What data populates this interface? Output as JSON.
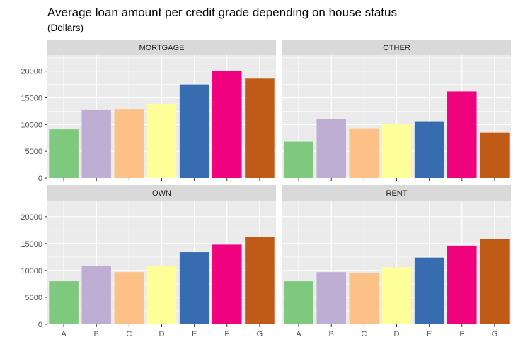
{
  "chart_data": {
    "type": "bar",
    "title": "Average loan amount per credit grade depending on house status",
    "subtitle": "(Dollars)",
    "xlabel": "",
    "ylabel": "",
    "categories": [
      "A",
      "B",
      "C",
      "D",
      "E",
      "F",
      "G"
    ],
    "colors": [
      "#7fc97f",
      "#beaed4",
      "#fdc086",
      "#ffff99",
      "#386cb0",
      "#f0027f",
      "#bf5b17"
    ],
    "ylim": [
      0,
      23000
    ],
    "yticks": [
      0,
      5000,
      10000,
      15000,
      20000
    ],
    "ytick_labels": [
      "0",
      "5000",
      "10000",
      "15000",
      "20000"
    ],
    "grid": true,
    "legend": "none",
    "panels": [
      {
        "name": "MORTGAGE",
        "values": [
          9100,
          12700,
          12800,
          13900,
          17500,
          20000,
          18600
        ]
      },
      {
        "name": "OTHER",
        "values": [
          6800,
          11000,
          9300,
          10100,
          10500,
          16200,
          8500
        ]
      },
      {
        "name": "OWN",
        "values": [
          8000,
          10800,
          9700,
          10900,
          13400,
          14800,
          16200
        ]
      },
      {
        "name": "RENT",
        "values": [
          8000,
          9700,
          9600,
          10600,
          12400,
          14600,
          15800
        ]
      }
    ]
  }
}
